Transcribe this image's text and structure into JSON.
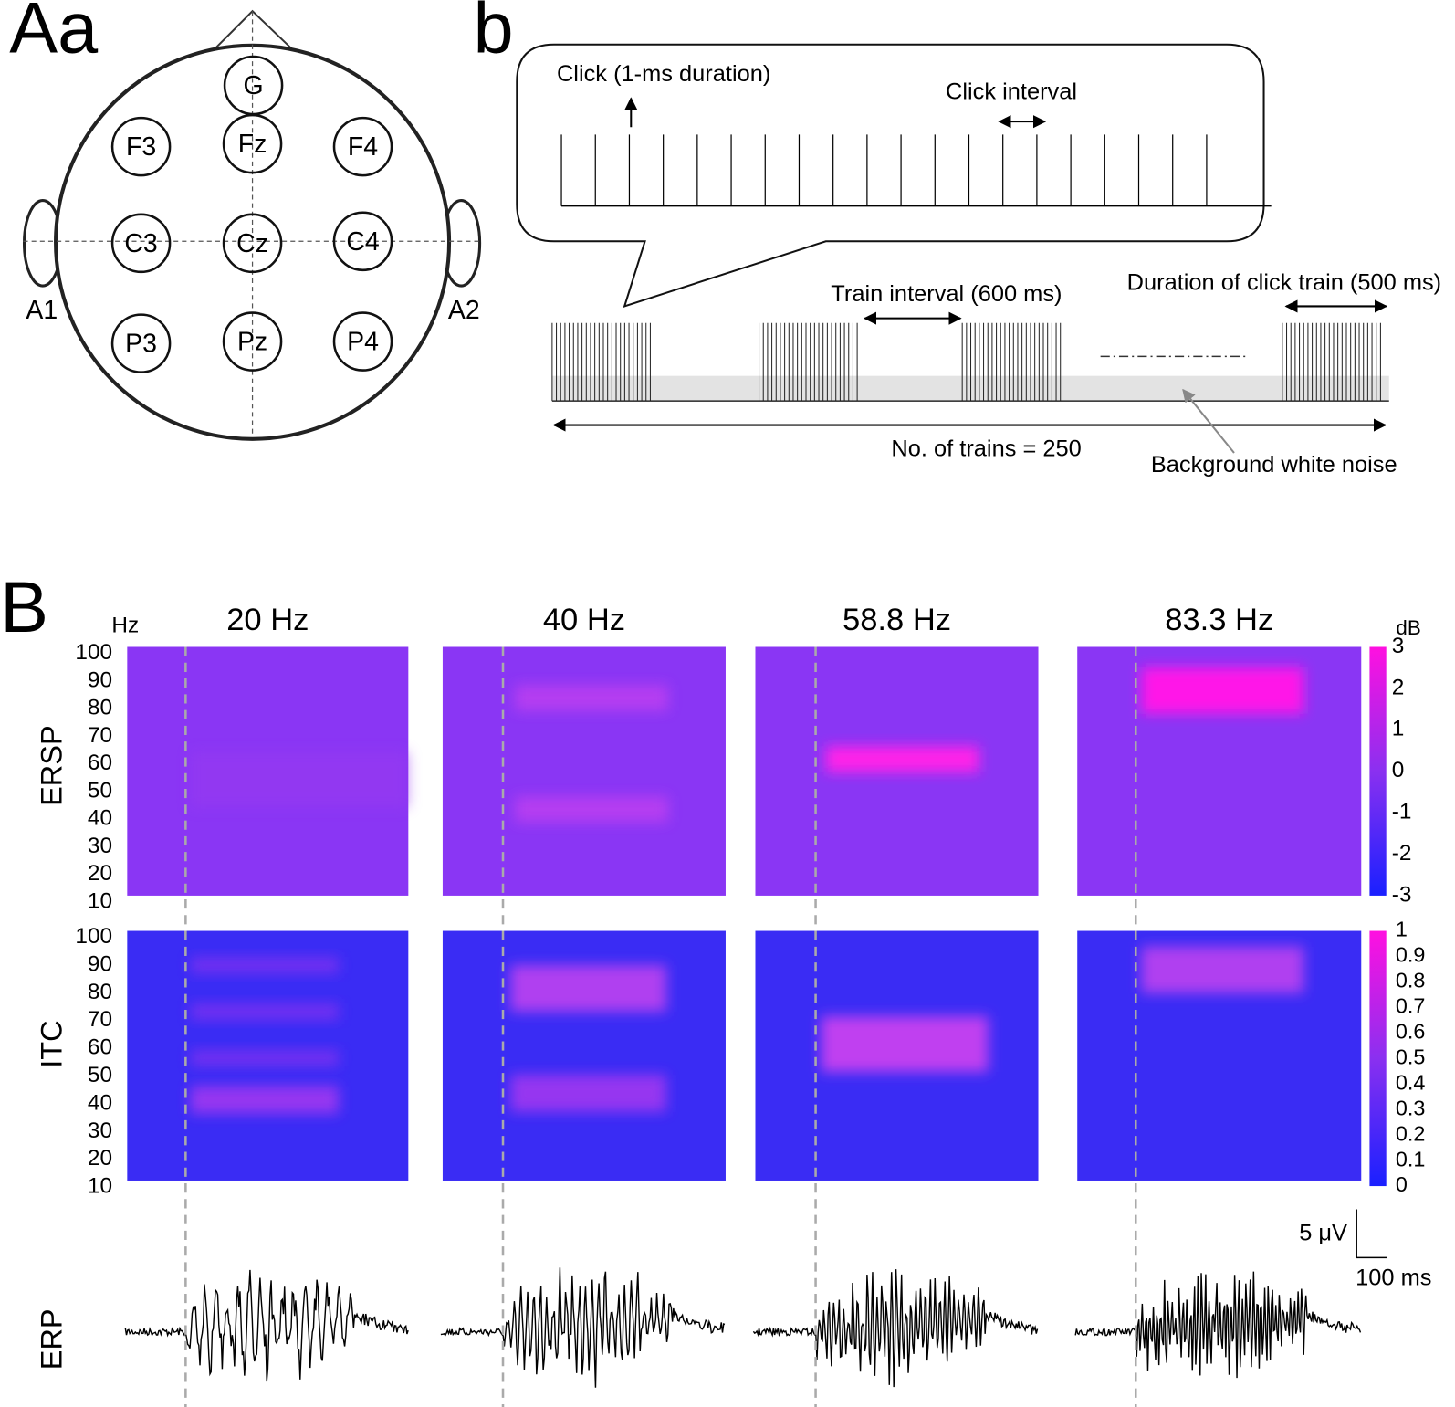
{
  "panel_labels": [
    "Aa",
    "b",
    "B"
  ],
  "head": {
    "electrodes": [
      "G",
      "F3",
      "Fz",
      "F4",
      "C3",
      "Cz",
      "C4",
      "P3",
      "Pz",
      "P4"
    ],
    "ears": [
      "A1",
      "A2"
    ]
  },
  "stimulus": {
    "click": "Click (1-ms duration)",
    "click_interval": "Click interval",
    "train_interval": "Train interval (600 ms)",
    "duration": "Duration of click train (500 ms)",
    "trains": "No. of trains = 250",
    "noise": "Background white noise"
  },
  "spectra": {
    "hz_label": "Hz",
    "conditions": [
      "20 Hz",
      "40 Hz",
      "58.8 Hz",
      "83.3 Hz"
    ],
    "freq_ticks": [
      100,
      90,
      80,
      70,
      60,
      50,
      40,
      30,
      20,
      10
    ],
    "rows": [
      "ERSP",
      "ITC",
      "ERP"
    ],
    "ersp_unit": "dB",
    "ersp_scale": [
      3,
      2,
      1,
      0,
      -1,
      -2,
      -3
    ],
    "itc_scale": [
      1,
      0.9,
      0.8,
      0.7,
      0.6,
      0.5,
      0.4,
      0.3,
      0.2,
      0.1,
      0
    ],
    "scale_bar": [
      "5 μV",
      "100 ms"
    ]
  }
}
